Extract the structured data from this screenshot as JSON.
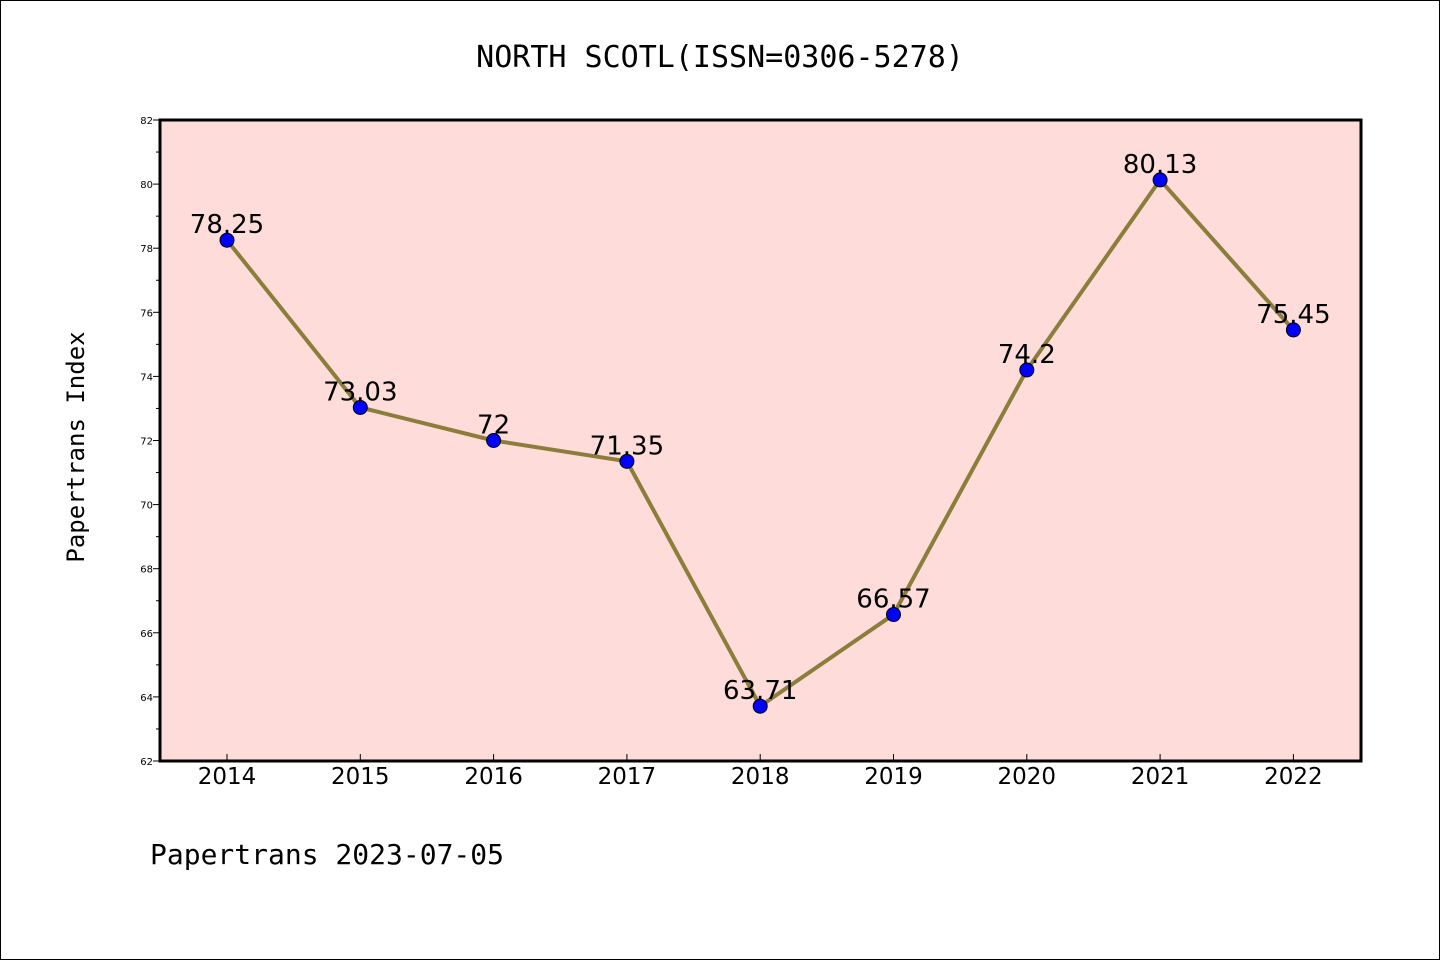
{
  "chart_data": {
    "type": "line",
    "title": "NORTH SCOTL(ISSN=0306-5278)",
    "xlabel": "",
    "ylabel": "Papertrans Index",
    "x": [
      "2014",
      "2015",
      "2016",
      "2017",
      "2018",
      "2019",
      "2020",
      "2021",
      "2022"
    ],
    "series": [
      {
        "values": [
          78.25,
          73.03,
          72,
          71.35,
          63.71,
          66.57,
          74.2,
          80.13,
          75.45
        ],
        "labels": [
          "78.25",
          "73.03",
          "72",
          "71.35",
          "63.71",
          "66.57",
          "74.2",
          "80.13",
          "75.45"
        ]
      }
    ],
    "ylim": [
      62,
      82
    ],
    "yticks": [
      "62",
      "64",
      "66",
      "68",
      "70",
      "72",
      "74",
      "76",
      "78",
      "80",
      "82"
    ],
    "grid": false,
    "legend": "none",
    "footer": "Papertrans 2023-07-05",
    "colors": {
      "plot_background": "#fddcda",
      "line": "#8b7d3a",
      "marker": "#0000ff",
      "axes": "#000000"
    }
  }
}
